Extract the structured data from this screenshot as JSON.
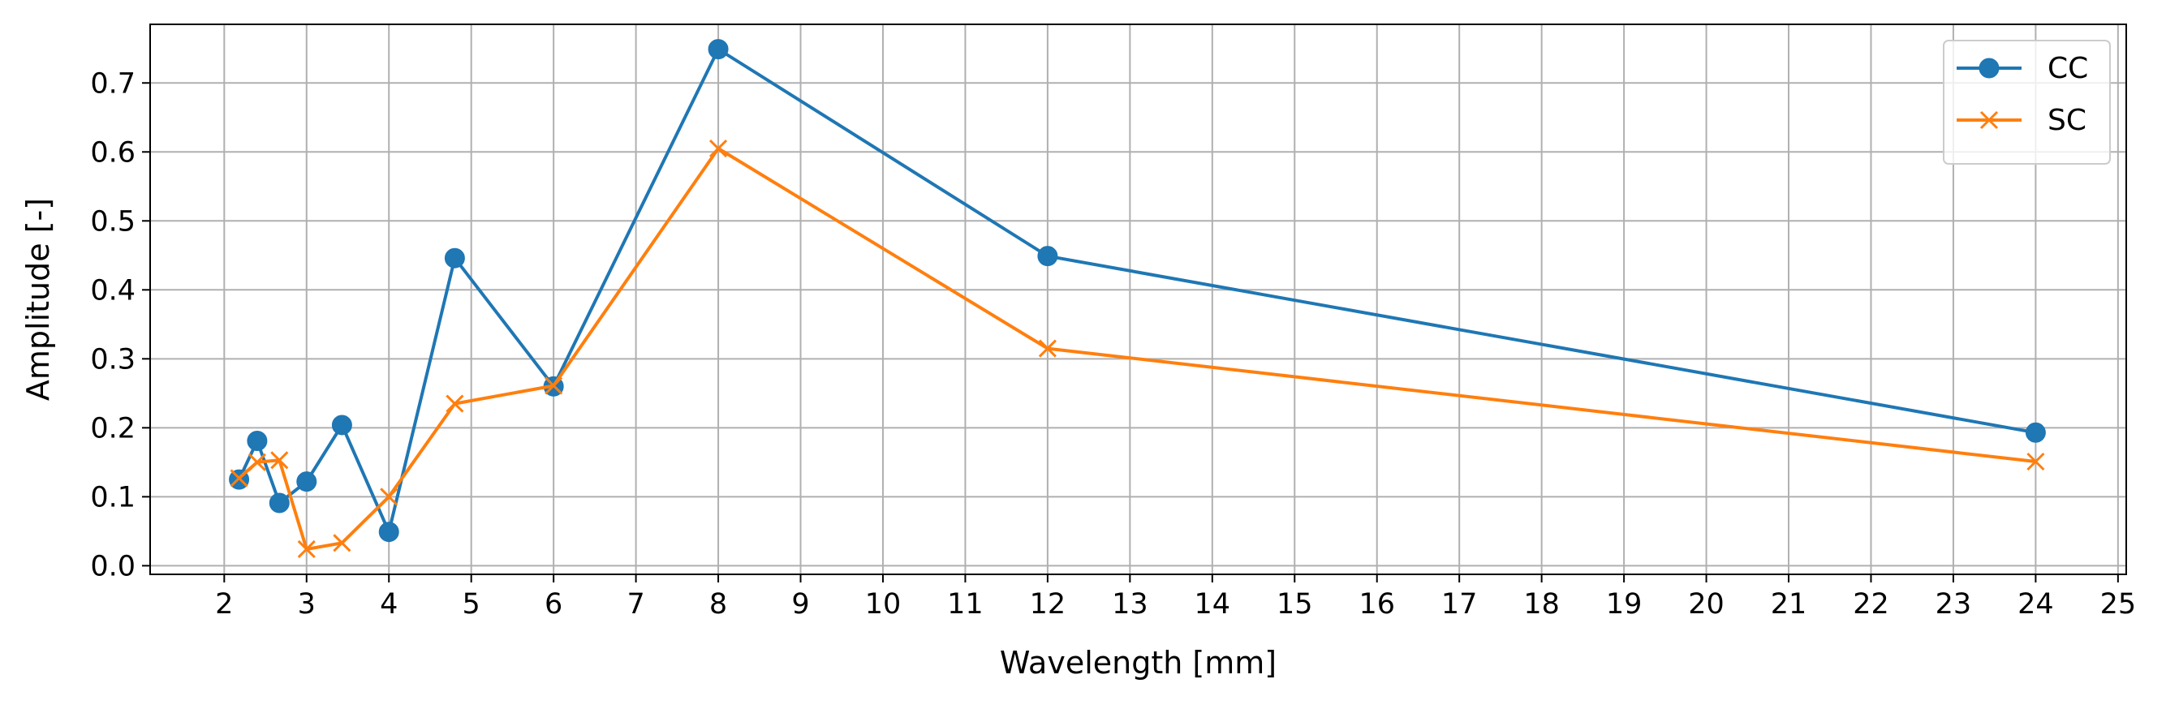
{
  "chart_data": {
    "type": "line",
    "title": "",
    "xlabel": "Wavelength [mm]",
    "ylabel": "Amplitude [-]",
    "xlim": [
      1.1,
      25.1
    ],
    "ylim": [
      -0.0125,
      0.785
    ],
    "xticks": [
      2,
      3,
      4,
      5,
      6,
      7,
      8,
      9,
      10,
      11,
      12,
      13,
      14,
      15,
      16,
      17,
      18,
      19,
      20,
      21,
      22,
      23,
      24,
      25
    ],
    "xtick_labels": [
      "2",
      "3",
      "4",
      "5",
      "6",
      "7",
      "8",
      "9",
      "10",
      "11",
      "12",
      "13",
      "14",
      "15",
      "16",
      "17",
      "18",
      "19",
      "20",
      "21",
      "22",
      "23",
      "24",
      "25"
    ],
    "yticks": [
      0.0,
      0.1,
      0.2,
      0.3,
      0.4,
      0.5,
      0.6,
      0.7
    ],
    "ytick_labels": [
      "0.0",
      "0.1",
      "0.2",
      "0.3",
      "0.4",
      "0.5",
      "0.6",
      "0.7"
    ],
    "grid": true,
    "legend_position": "top-right",
    "series": [
      {
        "name": "CC",
        "color": "#1f77b4",
        "marker": "circle",
        "x": [
          2.18,
          2.4,
          2.67,
          3.0,
          3.43,
          4.0,
          4.8,
          6.0,
          8.0,
          12.0,
          24.0
        ],
        "y": [
          0.125,
          0.181,
          0.091,
          0.122,
          0.204,
          0.049,
          0.446,
          0.26,
          0.749,
          0.449,
          0.193
        ]
      },
      {
        "name": "SC",
        "color": "#ff7f0e",
        "marker": "x",
        "x": [
          2.18,
          2.4,
          2.67,
          3.0,
          3.43,
          4.0,
          4.8,
          6.0,
          8.0,
          12.0,
          24.0
        ],
        "y": [
          0.127,
          0.15,
          0.153,
          0.024,
          0.033,
          0.1,
          0.235,
          0.261,
          0.605,
          0.315,
          0.151
        ]
      }
    ]
  }
}
